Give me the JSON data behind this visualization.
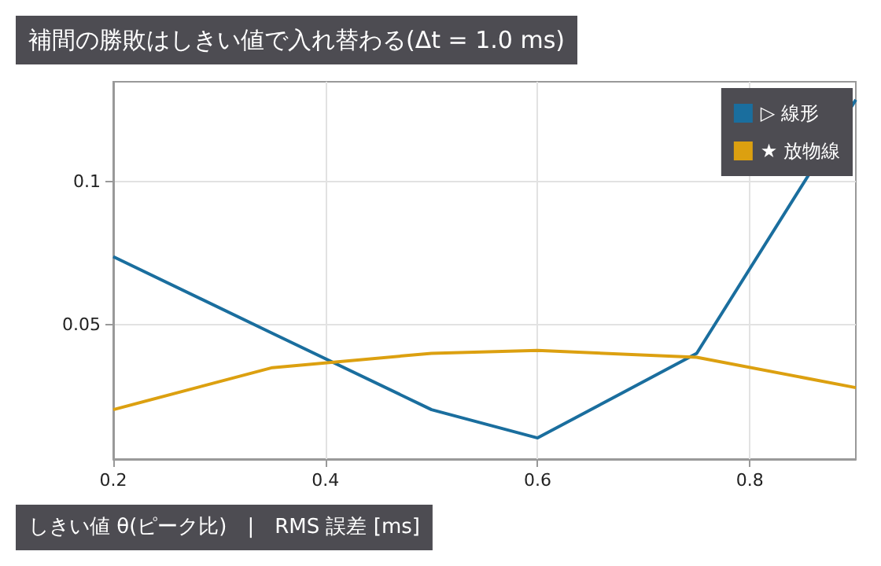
{
  "chart_data": {
    "type": "line",
    "title": "補間の勝敗はしきい値で入れ替わる(Δt = 1.0 ms)",
    "xlabel": "しきい値 θ(ピーク比)　|　RMS 誤差 [ms]",
    "x": [
      0.2,
      0.35,
      0.5,
      0.6,
      0.75,
      0.9
    ],
    "series": [
      {
        "name": "▷ 線形",
        "color": "#1a6e9e",
        "values": [
          0.0738,
          0.047,
          0.0203,
          0.0104,
          0.04,
          0.1287
        ]
      },
      {
        "name": "★ 放物線",
        "color": "#dca010",
        "values": [
          0.0203,
          0.035,
          0.04,
          0.041,
          0.0386,
          0.028
        ]
      }
    ],
    "xlim": [
      0.2,
      0.9
    ],
    "xticks": [
      0.2,
      0.4,
      0.6,
      0.8
    ],
    "ylim": [
      0.003,
      0.135
    ],
    "yticks": [
      0.05,
      0.1
    ],
    "grid": true,
    "legend": "top right",
    "marker": "none",
    "line_style": "solid"
  }
}
